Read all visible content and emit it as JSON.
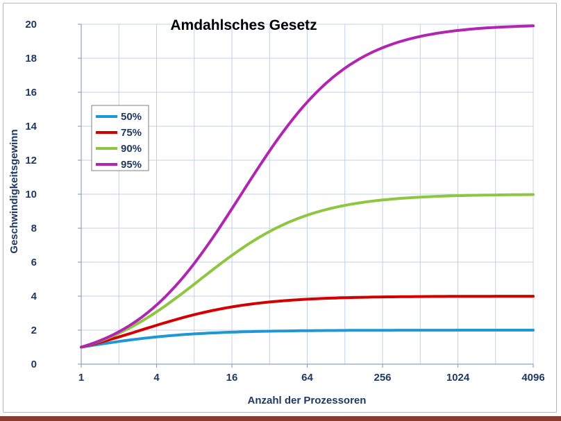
{
  "chart_data": {
    "type": "line",
    "title": "Amdahlsches Gesetz",
    "xlabel": "Anzahl der Prozessoren",
    "ylabel": "Geschwindigkeitsgewinn",
    "x_scale": "log2",
    "xlim": [
      1,
      4096
    ],
    "ylim": [
      0,
      20
    ],
    "grid": true,
    "legend_position": "upper-left-inside",
    "x": [
      1,
      2,
      4,
      8,
      16,
      32,
      64,
      128,
      256,
      512,
      1024,
      2048,
      4096
    ],
    "x_ticks": [
      1,
      4,
      16,
      64,
      256,
      1024,
      4096
    ],
    "x_tick_labels": [
      "1",
      "4",
      "16",
      "64",
      "256",
      "1024",
      "4096"
    ],
    "y_ticks": [
      0,
      2,
      4,
      6,
      8,
      10,
      12,
      14,
      16,
      18,
      20
    ],
    "series": [
      {
        "name": "50%",
        "parallel_fraction": 0.5,
        "color": "#1F97D4",
        "values": [
          1,
          1.333,
          1.6,
          1.778,
          1.882,
          1.939,
          1.969,
          1.985,
          1.992,
          1.996,
          1.998,
          1.999,
          2.0
        ]
      },
      {
        "name": "75%",
        "parallel_fraction": 0.75,
        "color": "#D40000",
        "values": [
          1,
          1.6,
          2.286,
          2.909,
          3.368,
          3.657,
          3.821,
          3.908,
          3.954,
          3.977,
          3.988,
          3.994,
          3.997
        ]
      },
      {
        "name": "90%",
        "parallel_fraction": 0.9,
        "color": "#8DC63F",
        "values": [
          1,
          1.818,
          3.077,
          4.706,
          6.4,
          7.805,
          8.767,
          9.343,
          9.66,
          9.827,
          9.913,
          9.956,
          9.978
        ]
      },
      {
        "name": "95%",
        "parallel_fraction": 0.95,
        "color": "#B026B0",
        "values": [
          1,
          1.905,
          3.478,
          5.926,
          9.143,
          12.549,
          15.422,
          17.415,
          18.618,
          19.284,
          19.636,
          19.816,
          19.908
        ]
      }
    ],
    "style": {
      "grid_color": "#C0D2E8",
      "axis_color": "#8CA3BD",
      "tick_text_color": "#1F3864",
      "title_color": "#000000",
      "legend_border_color": "#7F7F7F",
      "line_width": 4,
      "background": "#FFFFFF"
    }
  },
  "frame": {
    "border_color": "#B7B7B7",
    "bottom_strip_color": "#8B3A2F"
  }
}
